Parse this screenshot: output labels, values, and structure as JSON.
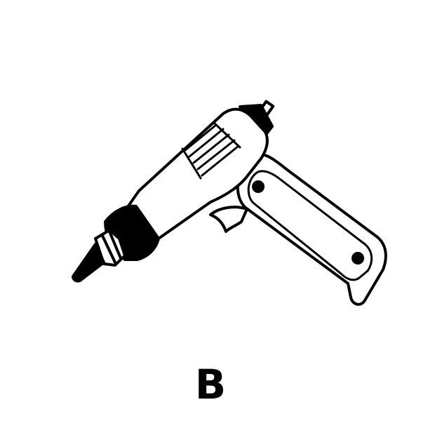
{
  "figure": {
    "caption": "B",
    "subject_icon": "glue-gun-icon",
    "colors": {
      "ink": "#000000",
      "paper": "#ffffff"
    }
  }
}
